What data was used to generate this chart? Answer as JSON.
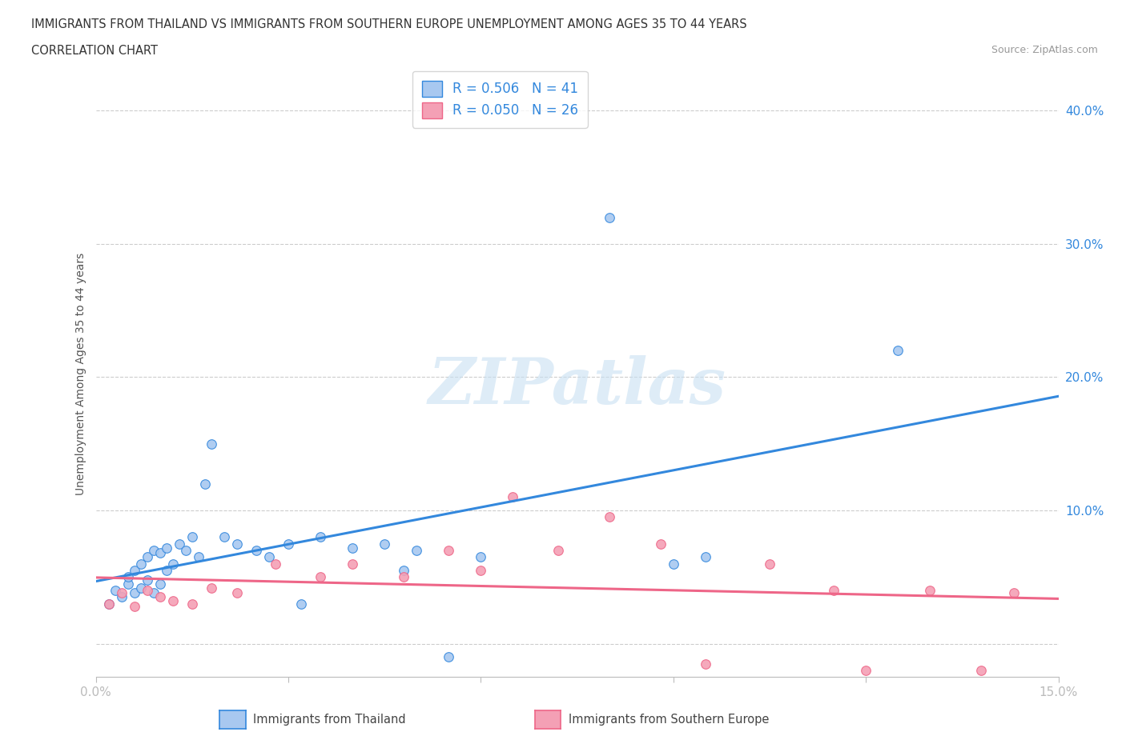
{
  "title_line1": "IMMIGRANTS FROM THAILAND VS IMMIGRANTS FROM SOUTHERN EUROPE UNEMPLOYMENT AMONG AGES 35 TO 44 YEARS",
  "title_line2": "CORRELATION CHART",
  "source": "Source: ZipAtlas.com",
  "ylabel": "Unemployment Among Ages 35 to 44 years",
  "xlim": [
    0.0,
    0.15
  ],
  "ylim": [
    -0.025,
    0.43
  ],
  "ytick_positions": [
    0.0,
    0.1,
    0.2,
    0.3,
    0.4
  ],
  "ytick_labels": [
    "",
    "10.0%",
    "20.0%",
    "30.0%",
    "40.0%"
  ],
  "thailand_R": 0.506,
  "thailand_N": 41,
  "southern_europe_R": 0.05,
  "southern_europe_N": 26,
  "thailand_color": "#a8c8f0",
  "thailand_line_color": "#3388dd",
  "southern_europe_color": "#f4a0b5",
  "southern_europe_line_color": "#ee6688",
  "background_color": "#ffffff",
  "thailand_scatter_x": [
    0.002,
    0.003,
    0.004,
    0.005,
    0.005,
    0.006,
    0.006,
    0.007,
    0.007,
    0.008,
    0.008,
    0.009,
    0.009,
    0.01,
    0.01,
    0.011,
    0.011,
    0.012,
    0.013,
    0.014,
    0.015,
    0.016,
    0.017,
    0.018,
    0.02,
    0.022,
    0.025,
    0.027,
    0.03,
    0.032,
    0.035,
    0.04,
    0.045,
    0.048,
    0.05,
    0.055,
    0.06,
    0.08,
    0.09,
    0.095,
    0.125
  ],
  "thailand_scatter_y": [
    0.03,
    0.04,
    0.035,
    0.045,
    0.05,
    0.038,
    0.055,
    0.042,
    0.06,
    0.048,
    0.065,
    0.038,
    0.07,
    0.045,
    0.068,
    0.055,
    0.072,
    0.06,
    0.075,
    0.07,
    0.08,
    0.065,
    0.12,
    0.15,
    0.08,
    0.075,
    0.07,
    0.065,
    0.075,
    0.03,
    0.08,
    0.072,
    0.075,
    0.055,
    0.07,
    -0.01,
    0.065,
    0.32,
    0.06,
    0.065,
    0.22
  ],
  "southern_europe_scatter_x": [
    0.002,
    0.004,
    0.006,
    0.008,
    0.01,
    0.012,
    0.015,
    0.018,
    0.022,
    0.028,
    0.035,
    0.04,
    0.048,
    0.055,
    0.06,
    0.065,
    0.072,
    0.08,
    0.088,
    0.095,
    0.105,
    0.115,
    0.12,
    0.13,
    0.138,
    0.143
  ],
  "southern_europe_scatter_y": [
    0.03,
    0.038,
    0.028,
    0.04,
    0.035,
    0.032,
    0.03,
    0.042,
    0.038,
    0.06,
    0.05,
    0.06,
    0.05,
    0.07,
    0.055,
    0.11,
    0.07,
    0.095,
    0.075,
    -0.015,
    0.06,
    0.04,
    -0.02,
    0.04,
    -0.02,
    0.038
  ],
  "legend_label_thailand": "Immigrants from Thailand",
  "legend_label_southern_europe": "Immigrants from Southern Europe"
}
